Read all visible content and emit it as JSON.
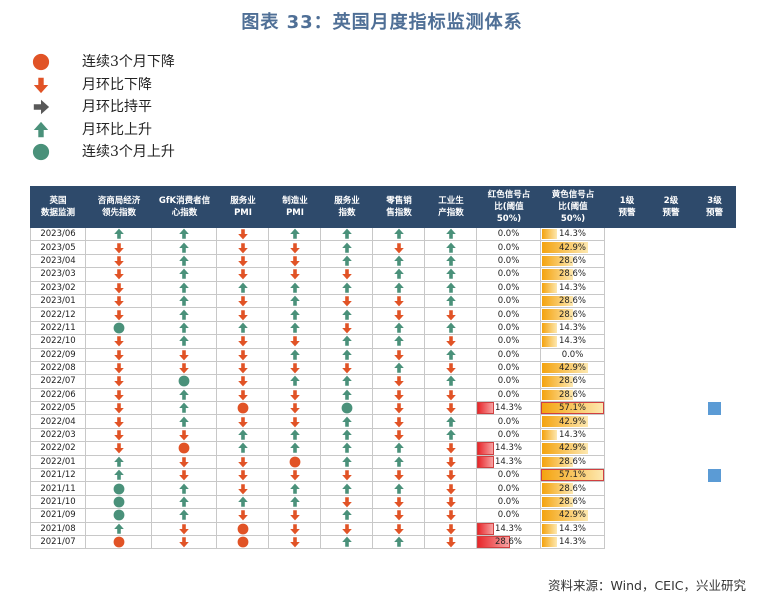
{
  "title": "图表 33：英国月度指标监测体系",
  "source": "资料来源：Wind，CEIC，兴业研究",
  "colors": {
    "header_bg": "#2e4a6b",
    "down": "#e15326",
    "up": "#4a917a",
    "flat": "#595959",
    "red_bar": "#e8272b",
    "yellow_bar": "#f4a30f",
    "warning": "#5b9bd5"
  },
  "legend": [
    {
      "icon": "red-circle-icon",
      "label": "连续3个月下降"
    },
    {
      "icon": "down-arrow-icon",
      "label": "月环比下降"
    },
    {
      "icon": "right-arrow-icon",
      "label": "月环比持平"
    },
    {
      "icon": "up-arrow-icon",
      "label": "月环比上升"
    },
    {
      "icon": "green-circle-icon",
      "label": "连续3个月上升"
    }
  ],
  "chart_data": {
    "type": "table",
    "columns": [
      "英国\n数据监测",
      "咨商局经济\n领先指数",
      "GfK消费者信\n心指数",
      "服务业\nPMI",
      "制造业\nPMI",
      "服务业\n指数",
      "零售销\n售指数",
      "工业生\n产指数",
      "红色信号占\n比(阈值\n50%)",
      "黄色信号占\n比(阈值\n50%)",
      "1级\n预警",
      "2级\n预警",
      "3级\n预警"
    ],
    "icon_legend": {
      "D": "月环比下降",
      "U": "月环比上升",
      "R": "连续3个月下降",
      "G": "连续3个月上升"
    },
    "rows": [
      {
        "date": "2023/06",
        "ind": [
          "U",
          "U",
          "D",
          "U",
          "U",
          "U",
          "U"
        ],
        "red": "0.0%",
        "red_v": 0.0,
        "yellow": "14.3%",
        "yellow_v": 14.3,
        "warn": 0
      },
      {
        "date": "2023/05",
        "ind": [
          "D",
          "U",
          "D",
          "D",
          "U",
          "D",
          "U"
        ],
        "red": "0.0%",
        "red_v": 0.0,
        "yellow": "42.9%",
        "yellow_v": 42.9,
        "warn": 0
      },
      {
        "date": "2023/04",
        "ind": [
          "D",
          "U",
          "D",
          "D",
          "U",
          "U",
          "U"
        ],
        "red": "0.0%",
        "red_v": 0.0,
        "yellow": "28.6%",
        "yellow_v": 28.6,
        "warn": 0
      },
      {
        "date": "2023/03",
        "ind": [
          "D",
          "U",
          "D",
          "D",
          "D",
          "U",
          "U"
        ],
        "red": "0.0%",
        "red_v": 0.0,
        "yellow": "28.6%",
        "yellow_v": 28.6,
        "warn": 0
      },
      {
        "date": "2023/02",
        "ind": [
          "D",
          "U",
          "U",
          "U",
          "U",
          "U",
          "U"
        ],
        "red": "0.0%",
        "red_v": 0.0,
        "yellow": "14.3%",
        "yellow_v": 14.3,
        "warn": 0
      },
      {
        "date": "2023/01",
        "ind": [
          "D",
          "U",
          "D",
          "U",
          "D",
          "D",
          "U"
        ],
        "red": "0.0%",
        "red_v": 0.0,
        "yellow": "28.6%",
        "yellow_v": 28.6,
        "warn": 0
      },
      {
        "date": "2022/12",
        "ind": [
          "D",
          "U",
          "D",
          "U",
          "U",
          "D",
          "D"
        ],
        "red": "0.0%",
        "red_v": 0.0,
        "yellow": "28.6%",
        "yellow_v": 28.6,
        "warn": 0
      },
      {
        "date": "2022/11",
        "ind": [
          "G",
          "U",
          "U",
          "U",
          "D",
          "U",
          "U"
        ],
        "red": "0.0%",
        "red_v": 0.0,
        "yellow": "14.3%",
        "yellow_v": 14.3,
        "warn": 0
      },
      {
        "date": "2022/10",
        "ind": [
          "D",
          "U",
          "D",
          "D",
          "U",
          "U",
          "D"
        ],
        "red": "0.0%",
        "red_v": 0.0,
        "yellow": "14.3%",
        "yellow_v": 14.3,
        "warn": 0
      },
      {
        "date": "2022/09",
        "ind": [
          "D",
          "D",
          "D",
          "U",
          "U",
          "D",
          "U"
        ],
        "red": "0.0%",
        "red_v": 0.0,
        "yellow": "0.0%",
        "yellow_v": 0.0,
        "warn": 0
      },
      {
        "date": "2022/08",
        "ind": [
          "D",
          "D",
          "D",
          "D",
          "D",
          "U",
          "D"
        ],
        "red": "0.0%",
        "red_v": 0.0,
        "yellow": "42.9%",
        "yellow_v": 42.9,
        "warn": 0
      },
      {
        "date": "2022/07",
        "ind": [
          "D",
          "G",
          "D",
          "U",
          "U",
          "D",
          "U"
        ],
        "red": "0.0%",
        "red_v": 0.0,
        "yellow": "28.6%",
        "yellow_v": 28.6,
        "warn": 0
      },
      {
        "date": "2022/06",
        "ind": [
          "D",
          "U",
          "D",
          "D",
          "U",
          "D",
          "D"
        ],
        "red": "0.0%",
        "red_v": 0.0,
        "yellow": "28.6%",
        "yellow_v": 28.6,
        "warn": 0
      },
      {
        "date": "2022/05",
        "ind": [
          "D",
          "U",
          "R",
          "D",
          "G",
          "D",
          "D"
        ],
        "red": "14.3%",
        "red_v": 14.3,
        "yellow": "57.1%",
        "yellow_v": 57.1,
        "warn": 3
      },
      {
        "date": "2022/04",
        "ind": [
          "D",
          "U",
          "D",
          "D",
          "U",
          "D",
          "U"
        ],
        "red": "0.0%",
        "red_v": 0.0,
        "yellow": "42.9%",
        "yellow_v": 42.9,
        "warn": 0
      },
      {
        "date": "2022/03",
        "ind": [
          "D",
          "D",
          "U",
          "U",
          "U",
          "D",
          "U"
        ],
        "red": "0.0%",
        "red_v": 0.0,
        "yellow": "14.3%",
        "yellow_v": 14.3,
        "warn": 0
      },
      {
        "date": "2022/02",
        "ind": [
          "D",
          "R",
          "U",
          "U",
          "U",
          "U",
          "D"
        ],
        "red": "14.3%",
        "red_v": 14.3,
        "yellow": "42.9%",
        "yellow_v": 42.9,
        "warn": 0
      },
      {
        "date": "2022/01",
        "ind": [
          "U",
          "D",
          "D",
          "R",
          "U",
          "U",
          "D"
        ],
        "red": "14.3%",
        "red_v": 14.3,
        "yellow": "28.6%",
        "yellow_v": 28.6,
        "warn": 0
      },
      {
        "date": "2021/12",
        "ind": [
          "U",
          "D",
          "D",
          "D",
          "D",
          "D",
          "D"
        ],
        "red": "0.0%",
        "red_v": 0.0,
        "yellow": "57.1%",
        "yellow_v": 57.1,
        "warn": 3
      },
      {
        "date": "2021/11",
        "ind": [
          "G",
          "U",
          "D",
          "U",
          "U",
          "U",
          "D"
        ],
        "red": "0.0%",
        "red_v": 0.0,
        "yellow": "28.6%",
        "yellow_v": 28.6,
        "warn": 0
      },
      {
        "date": "2021/10",
        "ind": [
          "G",
          "U",
          "U",
          "U",
          "D",
          "D",
          "D"
        ],
        "red": "0.0%",
        "red_v": 0.0,
        "yellow": "28.6%",
        "yellow_v": 28.6,
        "warn": 0
      },
      {
        "date": "2021/09",
        "ind": [
          "G",
          "U",
          "D",
          "D",
          "U",
          "D",
          "D"
        ],
        "red": "0.0%",
        "red_v": 0.0,
        "yellow": "42.9%",
        "yellow_v": 42.9,
        "warn": 0
      },
      {
        "date": "2021/08",
        "ind": [
          "U",
          "D",
          "R",
          "D",
          "D",
          "D",
          "D"
        ],
        "red": "14.3%",
        "red_v": 14.3,
        "yellow": "14.3%",
        "yellow_v": 14.3,
        "warn": 0
      },
      {
        "date": "2021/07",
        "ind": [
          "R",
          "D",
          "R",
          "D",
          "U",
          "U",
          "D"
        ],
        "red": "28.6%",
        "red_v": 28.6,
        "yellow": "14.3%",
        "yellow_v": 14.3,
        "warn": 0
      }
    ]
  }
}
